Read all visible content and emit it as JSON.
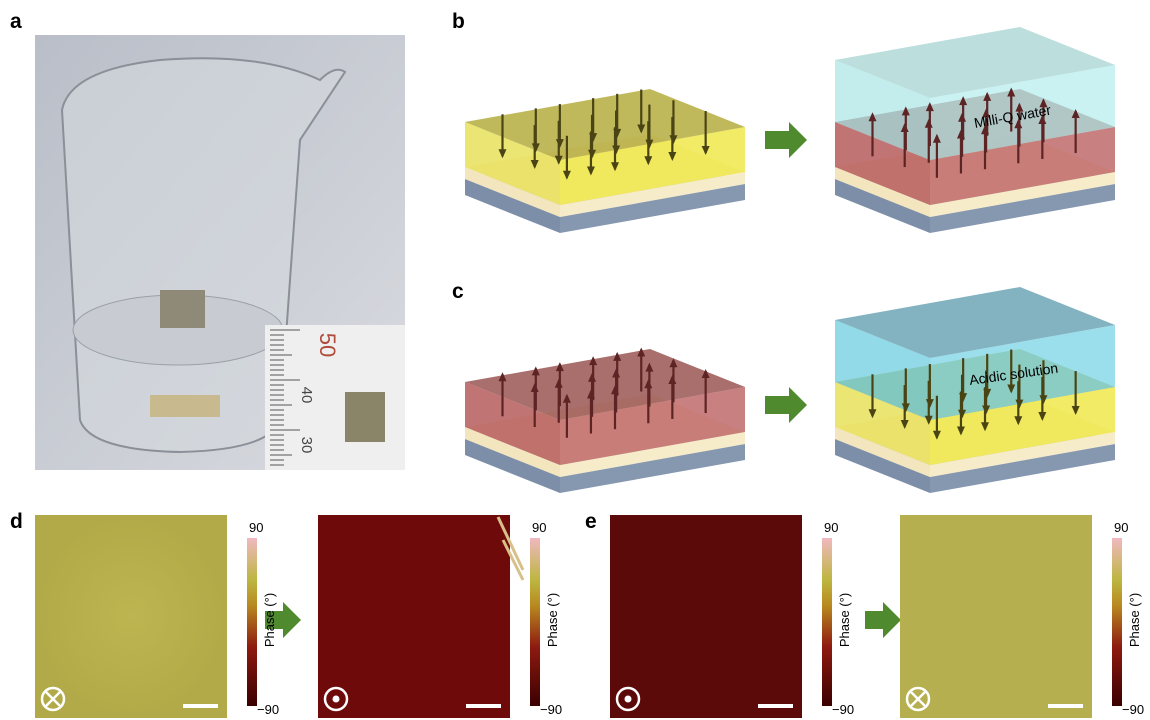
{
  "panel_a": {
    "label": "a",
    "ruler_labels": [
      "50",
      "40",
      "30"
    ]
  },
  "panel_b": {
    "label": "b",
    "annotation": "Milli-Q water"
  },
  "panel_c": {
    "label": "c",
    "annotation": "Acidic solution"
  },
  "panel_d": {
    "label": "d",
    "colorbars": [
      {
        "max": "90",
        "min": "−90",
        "title": "Phase (°)"
      },
      {
        "max": "90",
        "min": "−90",
        "title": "Phase (°)"
      }
    ]
  },
  "panel_e": {
    "label": "e",
    "colorbars": [
      {
        "max": "90",
        "min": "−90",
        "title": "Phase (°)"
      },
      {
        "max": "90",
        "min": "−90",
        "title": "Phase (°)"
      }
    ]
  }
}
